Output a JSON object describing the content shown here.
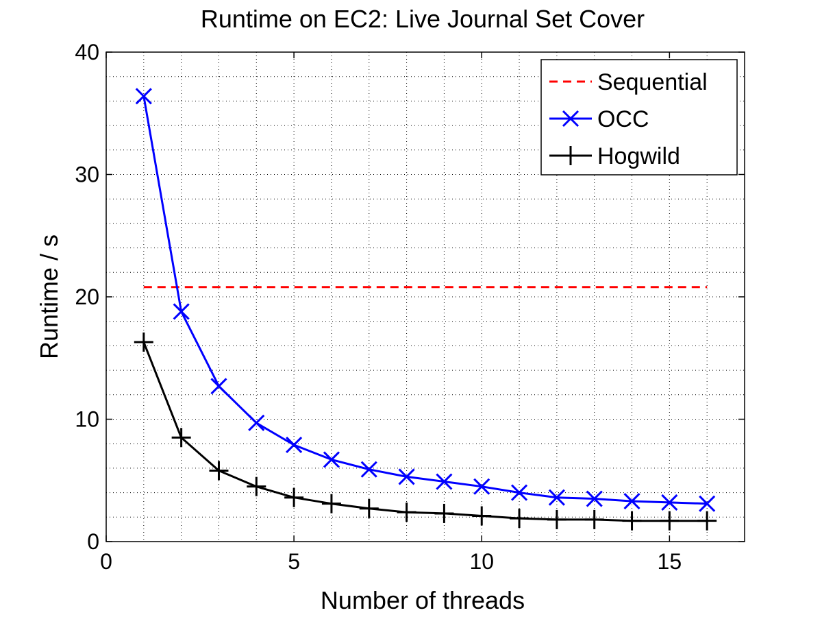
{
  "chart_data": {
    "type": "line",
    "title": "Runtime on EC2: Live Journal Set Cover",
    "xlabel": "Number of threads",
    "ylabel": "Runtime / s",
    "xlim": [
      0,
      17
    ],
    "ylim": [
      0,
      40
    ],
    "xticks": [
      0,
      5,
      10,
      15
    ],
    "yticks": [
      0,
      10,
      20,
      30,
      40
    ],
    "grid": "minor-dotted",
    "legend_position": "top-right",
    "series": [
      {
        "name": "Sequential",
        "style": "dashed",
        "color": "#ff0000",
        "marker": "none",
        "x": [
          1,
          16
        ],
        "y": [
          20.8,
          20.8
        ]
      },
      {
        "name": "OCC",
        "style": "solid",
        "color": "#0000ff",
        "marker": "x",
        "x": [
          1,
          2,
          3,
          4,
          5,
          6,
          7,
          8,
          9,
          10,
          11,
          12,
          13,
          14,
          15,
          16
        ],
        "y": [
          36.4,
          18.8,
          12.7,
          9.7,
          7.9,
          6.7,
          5.9,
          5.3,
          4.9,
          4.5,
          4.0,
          3.6,
          3.5,
          3.3,
          3.2,
          3.1
        ]
      },
      {
        "name": "Hogwild",
        "style": "solid",
        "color": "#000000",
        "marker": "+",
        "x": [
          1,
          2,
          3,
          4,
          5,
          6,
          7,
          8,
          9,
          10,
          11,
          12,
          13,
          14,
          15,
          16
        ],
        "y": [
          16.3,
          8.5,
          5.8,
          4.5,
          3.6,
          3.1,
          2.7,
          2.4,
          2.3,
          2.1,
          1.9,
          1.8,
          1.8,
          1.7,
          1.7,
          1.7
        ]
      }
    ]
  }
}
